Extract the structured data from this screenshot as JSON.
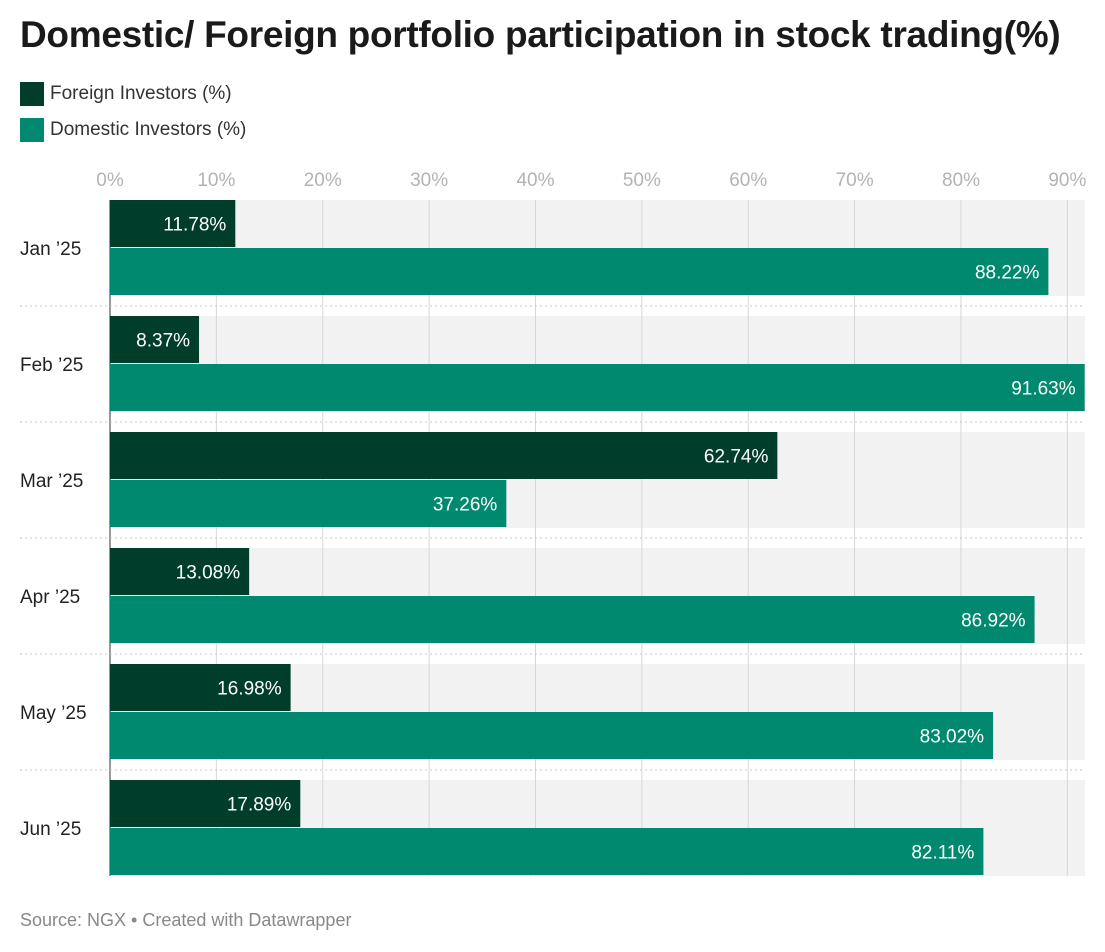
{
  "title": "Domestic/ Foreign portfolio participation in stock trading(%)",
  "source": "Source: NGX • Created with Datawrapper",
  "colors": {
    "foreign": "#003d2b",
    "domestic": "#00896f",
    "band": "#f2f2f2",
    "grid": "#d6d6d6",
    "tick": "#b3b3b3"
  },
  "chart_data": {
    "type": "bar",
    "orientation": "horizontal",
    "categories": [
      "Jan ’25",
      "Feb ’25",
      "Mar ’25",
      "Apr ’25",
      "May ’25",
      "Jun ’25"
    ],
    "series": [
      {
        "name": "Foreign Investors (%)",
        "values": [
          11.78,
          8.37,
          62.74,
          13.08,
          16.98,
          17.89
        ]
      },
      {
        "name": "Domestic Investors (%)",
        "values": [
          88.22,
          91.63,
          37.26,
          86.92,
          83.02,
          82.11
        ]
      }
    ],
    "data_labels": [
      [
        "11.78%",
        "8.37%",
        "62.74%",
        "13.08%",
        "16.98%",
        "17.89%"
      ],
      [
        "88.22%",
        "91.63%",
        "37.26%",
        "86.92%",
        "83.02%",
        "82.11%"
      ]
    ],
    "xticks": [
      "0%",
      "10%",
      "20%",
      "30%",
      "40%",
      "50%",
      "60%",
      "70%",
      "80%",
      "90%"
    ],
    "xlim": [
      0,
      91.63
    ],
    "legend_position": "top-left",
    "grid": true
  }
}
